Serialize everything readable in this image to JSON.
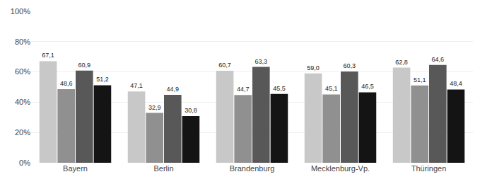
{
  "chart_data": {
    "type": "bar",
    "categories": [
      "Bayern",
      "Berlin",
      "Brandenburg",
      "Mecklenburg-Vp.",
      "Thüringen"
    ],
    "series": [
      {
        "color": "#c8c8c8",
        "values": [
          67.1,
          47.1,
          60.7,
          59.0,
          62.8
        ],
        "value_labels": [
          "67,1",
          "47,1",
          "60,7",
          "59,0",
          "62,8"
        ]
      },
      {
        "color": "#909090",
        "values": [
          48.6,
          32.9,
          44.7,
          45.1,
          51.1
        ],
        "value_labels": [
          "48,6",
          "32,9",
          "44,7",
          "45,1",
          "51,1"
        ]
      },
      {
        "color": "#585858",
        "values": [
          60.9,
          44.9,
          63.3,
          60.3,
          64.6
        ],
        "value_labels": [
          "60,9",
          "44,9",
          "63,3",
          "60,3",
          "64,6"
        ]
      },
      {
        "color": "#141414",
        "values": [
          51.2,
          30.8,
          45.5,
          46.5,
          48.4
        ],
        "value_labels": [
          "51,2",
          "30,8",
          "45,5",
          "46,5",
          "48,4"
        ]
      }
    ],
    "ylim": [
      0,
      100
    ],
    "yticks": [
      {
        "value": 0,
        "label": "0%"
      },
      {
        "value": 20,
        "label": "20%"
      },
      {
        "value": 40,
        "label": "40%"
      },
      {
        "value": 60,
        "label": "60%"
      },
      {
        "value": 80,
        "label": "80%"
      },
      {
        "value": 100,
        "label": "100%"
      }
    ],
    "grid": true,
    "data_labels": true
  }
}
